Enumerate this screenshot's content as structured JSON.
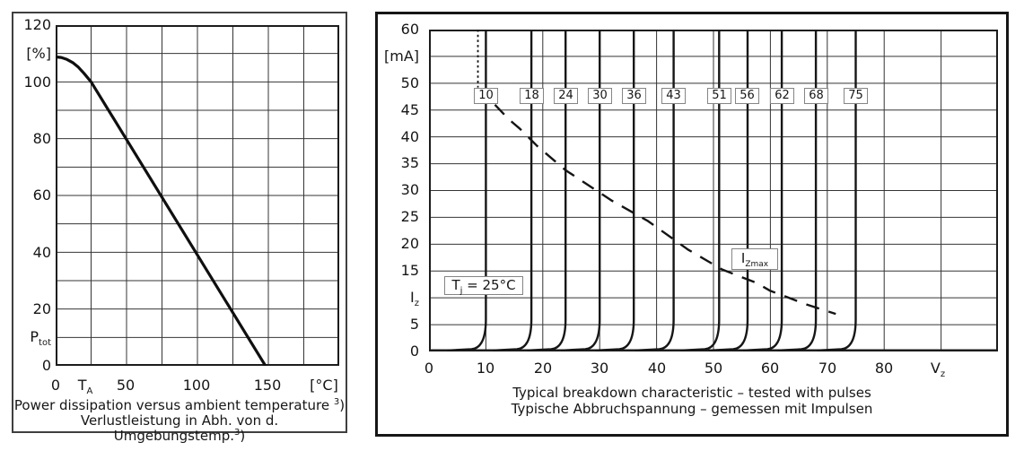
{
  "chart_data": [
    {
      "type": "line",
      "title": "Power dissipation versus ambient temperature",
      "title_de": "Verlustleistung in Abh. von d. Umgebungstemp.",
      "footnote": "3)",
      "xlabel": "T_A [°C]",
      "ylabel": "P_tot [%]",
      "xlim": [
        0,
        200
      ],
      "ylim": [
        0,
        120
      ],
      "x_tick_step": 25,
      "y_tick_step": 10,
      "x_tick_labels": [
        "0",
        "T_A",
        "50",
        "100",
        "150",
        "[°C]"
      ],
      "y_tick_labels": [
        "120",
        "[%]",
        "100",
        "80",
        "60",
        "40",
        "20",
        "P_tot",
        "0"
      ],
      "grid": true,
      "series": [
        {
          "name": "P_tot derating",
          "points": [
            [
              0,
              108.8
            ],
            [
              4,
              108.6
            ],
            [
              8,
              107.9
            ],
            [
              12,
              106.8
            ],
            [
              16,
              105.2
            ],
            [
              20,
              103
            ],
            [
              25,
              100
            ],
            [
              148,
              0
            ]
          ]
        }
      ]
    },
    {
      "type": "line",
      "title": "Typical breakdown characteristic – tested with pulses",
      "title_de": "Typische Abbruchspannung – gemessen mit Impulsen",
      "xlabel": "V_z",
      "ylabel": "I_z [mA]",
      "xlim": [
        0,
        100
      ],
      "ylim": [
        0,
        60
      ],
      "x_tick_step": 10,
      "y_tick_step": 5,
      "x_tick_labels": [
        "0",
        "10",
        "20",
        "30",
        "40",
        "50",
        "60",
        "70",
        "80",
        "V_z"
      ],
      "y_tick_labels": [
        "60",
        "[mA]",
        "50",
        "45",
        "40",
        "35",
        "30",
        "25",
        "20",
        "15",
        "I_z",
        "5",
        "0"
      ],
      "grid": true,
      "zener_voltages": [
        10,
        18,
        24,
        30,
        36,
        43,
        51,
        56,
        62,
        68,
        75
      ],
      "zener_knee_current": 6,
      "izmax_curve": [
        [
          11.6,
          46
        ],
        [
          14,
          43.3
        ],
        [
          16,
          41.5
        ],
        [
          19,
          38.3
        ],
        [
          24,
          33.8
        ],
        [
          28,
          31
        ],
        [
          32,
          28.2
        ],
        [
          38.5,
          24.3
        ],
        [
          45.5,
          19
        ],
        [
          51.5,
          15.3
        ],
        [
          57.5,
          12.8
        ],
        [
          60,
          11.3
        ],
        [
          66.5,
          8.7
        ],
        [
          71.5,
          7
        ]
      ],
      "dotted_segment": {
        "v": 8.6,
        "i_from": 60,
        "i_to": 49.2
      },
      "annotations": [
        "T_j = 25°C",
        "I_Zmax"
      ]
    }
  ],
  "left": {
    "y_ticks": [
      "120",
      "[%]",
      "100",
      "80",
      "60",
      "40",
      "20",
      "0"
    ],
    "p_symbol": "P",
    "p_sub": "tot",
    "x_ticks": [
      "0",
      "50",
      "100",
      "150"
    ],
    "t_symbol": "T",
    "t_sub": "A",
    "x_unit": "[°C]",
    "caption_en": "Power dissipation versus ambient temperature",
    "caption_de": "Verlustleistung in Abh. von d. Umgebungstemp.",
    "footnote_num": "3",
    "footnote_paren": ")"
  },
  "right": {
    "y_ticks": [
      "60",
      "[mA]",
      "50",
      "45",
      "40",
      "35",
      "30",
      "25",
      "20",
      "15",
      "5",
      "0"
    ],
    "i_symbol": "I",
    "i_sub": "z",
    "x_ticks": [
      "0",
      "10",
      "20",
      "30",
      "40",
      "50",
      "60",
      "70",
      "80"
    ],
    "v_symbol": "V",
    "v_sub": "z",
    "vz_labels": [
      "10",
      "18",
      "24",
      "30",
      "36",
      "43",
      "51",
      "56",
      "62",
      "68",
      "75"
    ],
    "tj_pre": "T",
    "tj_sub": "j",
    "tj_post": " = 25°C",
    "izmax_pre": "I",
    "izmax_sub": "Zmax",
    "caption_en": "Typical breakdown characteristic – tested with pulses",
    "caption_de": "Typische Abbruchspannung – gemessen mit Impulsen"
  }
}
